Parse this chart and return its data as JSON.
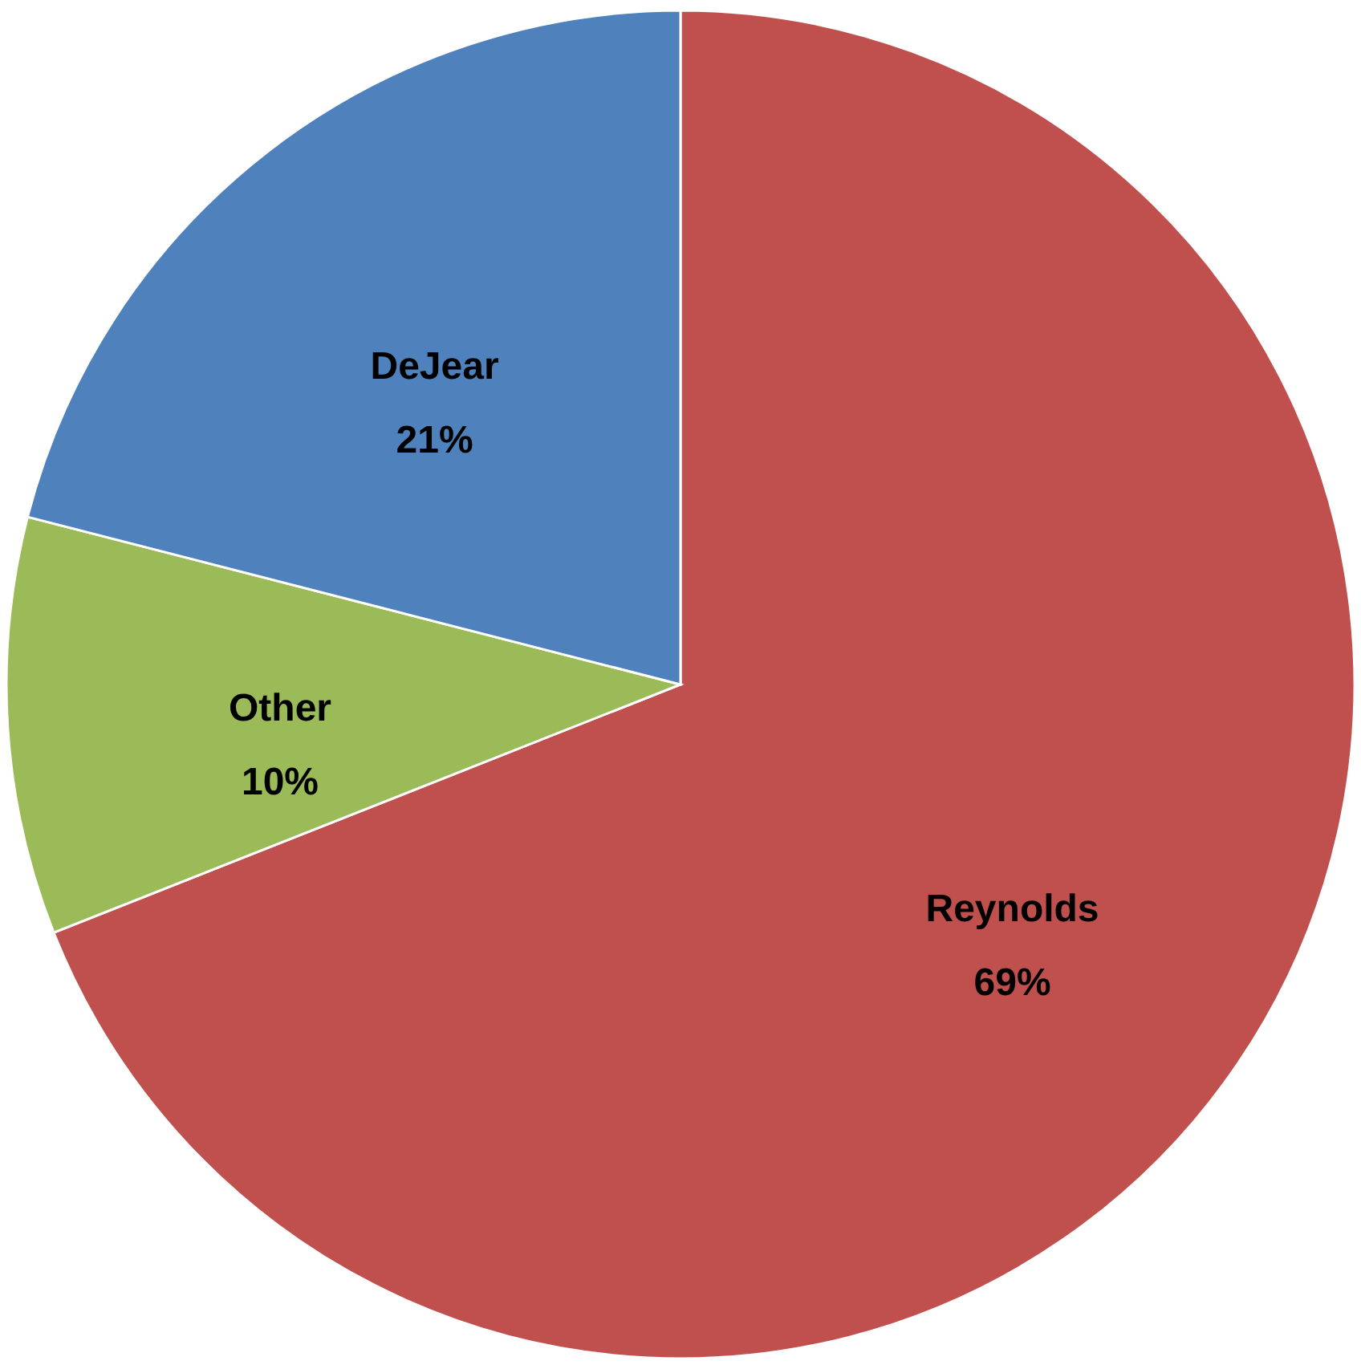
{
  "chart_data": {
    "type": "pie",
    "categories": [
      "Reynolds",
      "Other",
      "DeJear"
    ],
    "values": [
      69,
      10,
      21
    ],
    "colors": [
      "#c0504d",
      "#9bbb59",
      "#4f81bd"
    ],
    "value_labels": [
      "69%",
      "10%",
      "21%"
    ]
  }
}
